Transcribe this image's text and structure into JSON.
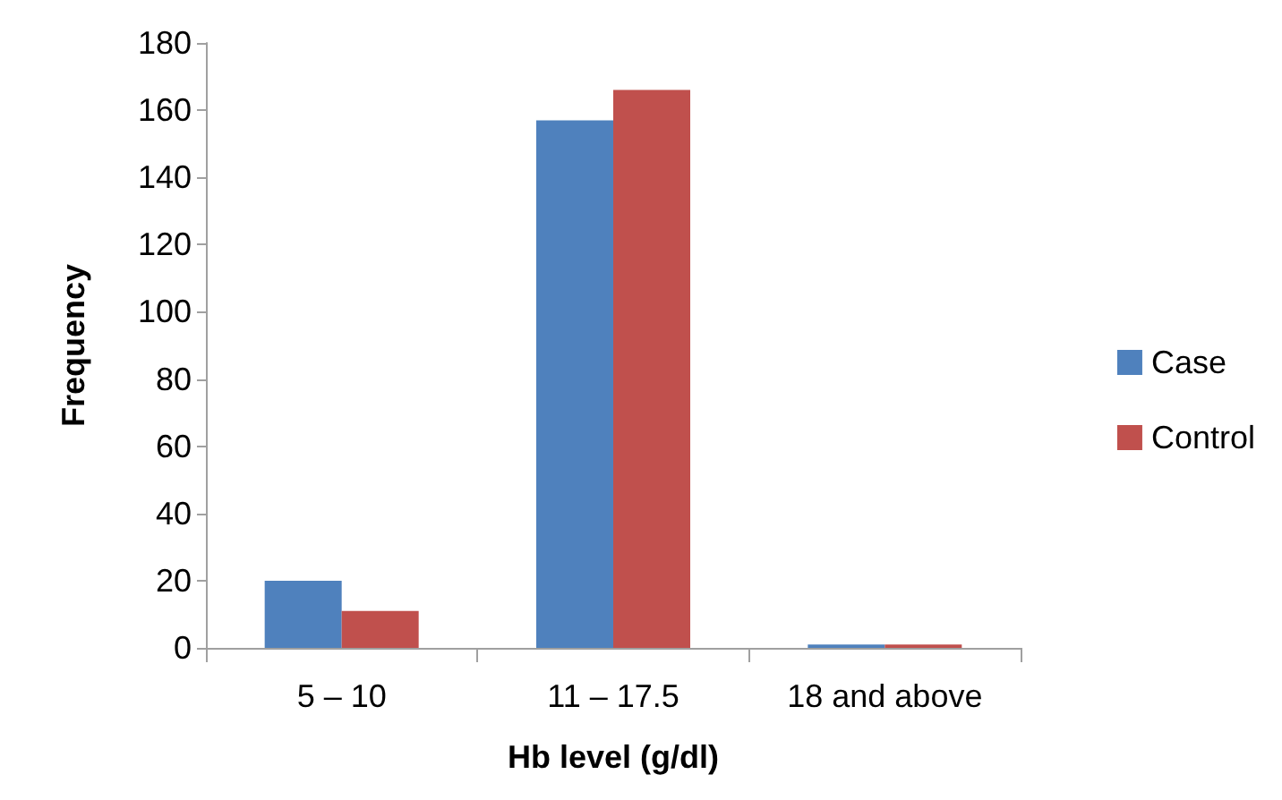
{
  "chart_data": {
    "type": "bar",
    "xlabel": "Hb level (g/dl)",
    "ylabel": "Frequency",
    "categories": [
      "5 – 10",
      "11 – 17.5",
      "18 and above"
    ],
    "series": [
      {
        "name": "Case",
        "color": "#4f81bd",
        "values": [
          20,
          157,
          1
        ]
      },
      {
        "name": "Control",
        "color": "#c0504d",
        "values": [
          11,
          166,
          1
        ]
      }
    ],
    "ylim": [
      0,
      180
    ],
    "yticks": [
      0,
      20,
      40,
      60,
      80,
      100,
      120,
      140,
      160,
      180
    ],
    "grid": false,
    "legend": "right"
  }
}
